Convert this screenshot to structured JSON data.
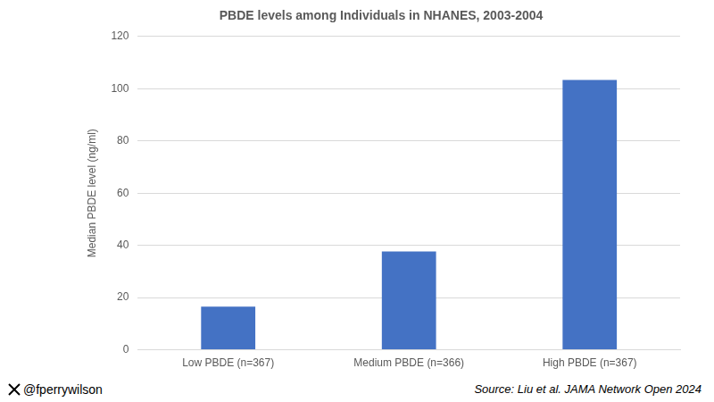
{
  "chart_data": {
    "type": "bar",
    "title": "PBDE levels among Individuals in NHANES, 2003-2004",
    "y_label": "Median PBDE level (ng/ml)",
    "categories": [
      "Low PBDE (n=367)",
      "Medium PBDE (n=366)",
      "High PBDE (n=367)"
    ],
    "values": [
      16.5,
      37.7,
      103.3
    ],
    "color": "#4472c4",
    "ylim": [
      0,
      120
    ],
    "yticks": [
      0,
      20,
      40,
      60,
      80,
      100,
      120
    ],
    "grid": true,
    "annotations": [
      "@fperrywilson",
      "Source: Liu et al. JAMA Network Open 2024"
    ]
  }
}
